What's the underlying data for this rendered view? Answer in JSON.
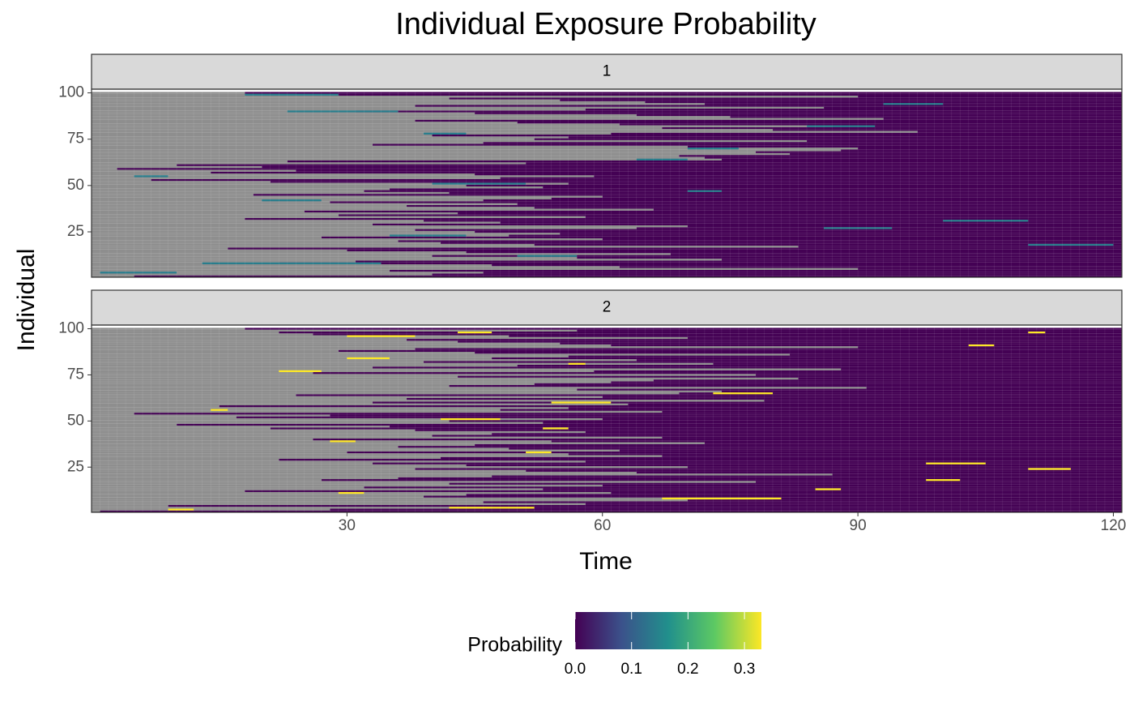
{
  "chart_data": {
    "type": "heatmap",
    "title": "Individual Exposure Probability",
    "x_label": "Time",
    "y_label": "Individual",
    "xlim": [
      0,
      121
    ],
    "xticks": [
      30,
      60,
      90,
      120
    ],
    "ylim": [
      0.5,
      102
    ],
    "yticks": [
      25,
      50,
      75,
      100
    ],
    "na_color": "#8e8e8e",
    "palette": [
      "#440154",
      "#3b528b",
      "#21908c",
      "#5dc963",
      "#fde725"
    ],
    "legend": {
      "title": "Probability",
      "limits": [
        0,
        0.33
      ],
      "ticks": [
        {
          "value": 0,
          "label": "0.0"
        },
        0.1,
        0.2,
        0.3
      ],
      "position": "bottom"
    },
    "facets": [
      {
        "label": "1",
        "onset": [
          5,
          40,
          46,
          35,
          90,
          62,
          47,
          22,
          31,
          74,
          57,
          40,
          68,
          44,
          30,
          16,
          83,
          52,
          41,
          36,
          60,
          27,
          49,
          55,
          45,
          38,
          64,
          70,
          33,
          48,
          39,
          18,
          58,
          29,
          43,
          25,
          66,
          52,
          37,
          50,
          28,
          46,
          54,
          60,
          19,
          42,
          32,
          35,
          53,
          44,
          56,
          21,
          7,
          48,
          59,
          45,
          14,
          24,
          3,
          20,
          10,
          51,
          23,
          74,
          72,
          69,
          82,
          78,
          88,
          90,
          70,
          33,
          46,
          84,
          52,
          56,
          40,
          61,
          97,
          80,
          67,
          87,
          62,
          50,
          38,
          93,
          75,
          64,
          45,
          31,
          58,
          86,
          38,
          72,
          65,
          55,
          42,
          90,
          24,
          18
        ],
        "segments": [
          {
            "row": 3,
            "start": 1,
            "end": 10,
            "value": 0.14
          },
          {
            "row": 8,
            "start": 13,
            "end": 34,
            "value": 0.14
          },
          {
            "row": 12,
            "start": 50,
            "end": 57,
            "value": 0.14
          },
          {
            "row": 18,
            "start": 110,
            "end": 120,
            "value": 0.14
          },
          {
            "row": 23,
            "start": 35,
            "end": 44,
            "value": 0.14
          },
          {
            "row": 27,
            "start": 86,
            "end": 94,
            "value": 0.14
          },
          {
            "row": 31,
            "start": 100,
            "end": 110,
            "value": 0.14
          },
          {
            "row": 42,
            "start": 20,
            "end": 27,
            "value": 0.14
          },
          {
            "row": 47,
            "start": 70,
            "end": 74,
            "value": 0.14
          },
          {
            "row": 51,
            "start": 40,
            "end": 51,
            "value": 0.14
          },
          {
            "row": 55,
            "start": 5,
            "end": 9,
            "value": 0.14
          },
          {
            "row": 64,
            "start": 64,
            "end": 70,
            "value": 0.14
          },
          {
            "row": 70,
            "start": 70,
            "end": 76,
            "value": 0.14
          },
          {
            "row": 78,
            "start": 39,
            "end": 44,
            "value": 0.14
          },
          {
            "row": 82,
            "start": 84,
            "end": 92,
            "value": 0.14
          },
          {
            "row": 90,
            "start": 23,
            "end": 36,
            "value": 0.14
          },
          {
            "row": 94,
            "start": 93,
            "end": 100,
            "value": 0.14
          },
          {
            "row": 99,
            "start": 18,
            "end": 29,
            "value": 0.14
          }
        ]
      },
      {
        "label": "2",
        "onset": [
          1,
          28,
          47,
          9,
          58,
          46,
          70,
          80,
          39,
          44,
          61,
          18,
          53,
          32,
          60,
          42,
          78,
          27,
          36,
          47,
          87,
          64,
          51,
          38,
          70,
          44,
          33,
          58,
          22,
          41,
          67,
          56,
          30,
          62,
          49,
          36,
          45,
          72,
          54,
          26,
          67,
          40,
          47,
          58,
          38,
          21,
          35,
          10,
          53,
          42,
          60,
          17,
          28,
          5,
          67,
          48,
          56,
          15,
          63,
          33,
          79,
          37,
          60,
          24,
          69,
          74,
          57,
          91,
          42,
          52,
          61,
          66,
          83,
          43,
          78,
          26,
          59,
          88,
          33,
          50,
          73,
          39,
          64,
          47,
          56,
          82,
          45,
          29,
          38,
          90,
          61,
          55,
          43,
          37,
          70,
          49,
          26,
          22,
          57,
          18
        ],
        "segments": [
          {
            "row": 2,
            "start": 9,
            "end": 12,
            "value": 0.33
          },
          {
            "row": 3,
            "start": 42,
            "end": 52,
            "value": 0.33
          },
          {
            "row": 8,
            "start": 67,
            "end": 81,
            "value": 0.33
          },
          {
            "row": 11,
            "start": 29,
            "end": 32,
            "value": 0.33
          },
          {
            "row": 13,
            "start": 85,
            "end": 88,
            "value": 0.33
          },
          {
            "row": 18,
            "start": 98,
            "end": 102,
            "value": 0.33
          },
          {
            "row": 24,
            "start": 110,
            "end": 115,
            "value": 0.33
          },
          {
            "row": 27,
            "start": 98,
            "end": 105,
            "value": 0.33
          },
          {
            "row": 33,
            "start": 51,
            "end": 54,
            "value": 0.33
          },
          {
            "row": 39,
            "start": 28,
            "end": 31,
            "value": 0.33
          },
          {
            "row": 46,
            "start": 53,
            "end": 56,
            "value": 0.33
          },
          {
            "row": 51,
            "start": 41,
            "end": 48,
            "value": 0.33
          },
          {
            "row": 56,
            "start": 14,
            "end": 16,
            "value": 0.33
          },
          {
            "row": 60,
            "start": 54,
            "end": 61,
            "value": 0.33
          },
          {
            "row": 65,
            "start": 73,
            "end": 80,
            "value": 0.33
          },
          {
            "row": 77,
            "start": 22,
            "end": 27,
            "value": 0.33
          },
          {
            "row": 81,
            "start": 56,
            "end": 58,
            "value": 0.33
          },
          {
            "row": 84,
            "start": 30,
            "end": 35,
            "value": 0.33
          },
          {
            "row": 91,
            "start": 103,
            "end": 106,
            "value": 0.33
          },
          {
            "row": 96,
            "start": 30,
            "end": 38,
            "value": 0.33
          },
          {
            "row": 98,
            "start": 43,
            "end": 47,
            "value": 0.33
          },
          {
            "row": 98,
            "start": 110,
            "end": 112,
            "value": 0.33
          }
        ]
      }
    ]
  }
}
